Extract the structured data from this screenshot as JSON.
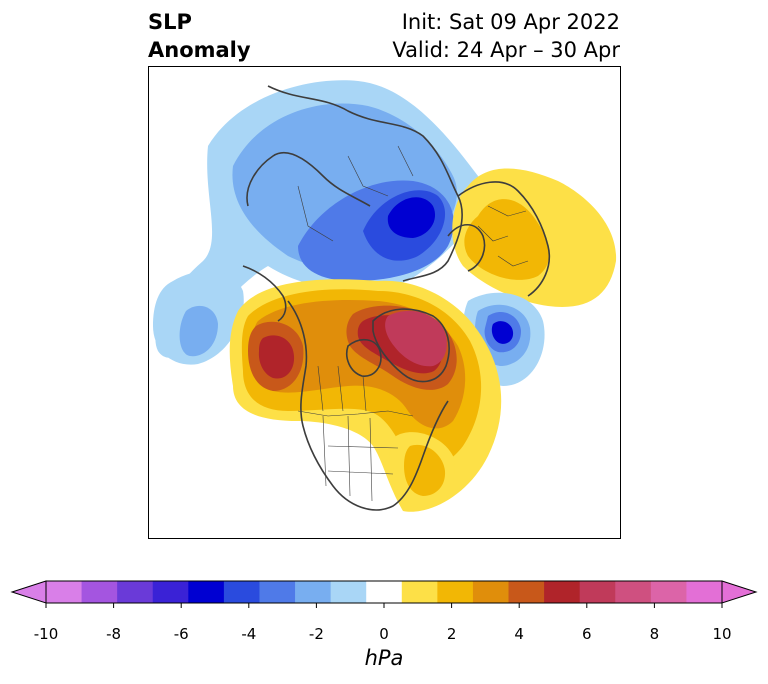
{
  "title": {
    "line1": "SLP",
    "line2": "Anomaly",
    "init": "Init: Sat 09 Apr 2022",
    "valid": "Valid: 24 Apr – 30 Apr"
  },
  "colorbar": {
    "unit": "hPa",
    "ticks": [
      "-10",
      "-8",
      "-6",
      "-4",
      "-2",
      "0",
      "2",
      "4",
      "6",
      "8",
      "10"
    ],
    "colors": [
      "#d97fe8",
      "#a455e0",
      "#6a3ad8",
      "#3a22d6",
      "#0000d2",
      "#2a4bde",
      "#4f7ae8",
      "#78aef0",
      "#a9d6f6",
      "#ffffff",
      "#fde047",
      "#f2b705",
      "#e08e0b",
      "#c8581a",
      "#b0242a",
      "#c03a5a",
      "#cf5080",
      "#dc64a8",
      "#e36fd6"
    ],
    "extend_low_color": "#d97fe8",
    "extend_high_color": "#e36fd6"
  }
}
